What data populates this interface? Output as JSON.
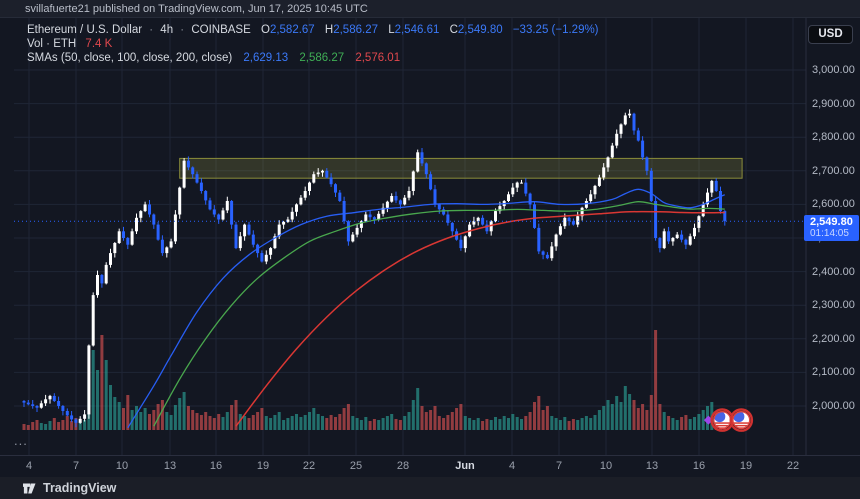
{
  "header": {
    "publish_line": "svillafuerte21 published on TradingView.com, Jun 17, 2025 10:45 UTC"
  },
  "toolbar": {
    "currency_button": "USD"
  },
  "legend": {
    "symbol_row": {
      "title": "Ethereum / U.S. Dollar",
      "separator": "·",
      "interval": "4h",
      "exchange": "COINBASE",
      "open_label": "O",
      "open": "2,582.67",
      "high_label": "H",
      "high": "2,586.27",
      "low_label": "L",
      "low": "2,546.61",
      "close_label": "C",
      "close": "2,549.80",
      "change": "−33.25 (−1.29%)"
    },
    "volume_row": {
      "label": "Vol · ETH",
      "value": "7.4 K"
    },
    "sma_row": {
      "label": "SMAs (50, close, 100, close, 200, close)",
      "sma50": "2,629.13",
      "sma100": "2,586.27",
      "sma200": "2,576.01"
    },
    "more_indicator": "..."
  },
  "price_scale": {
    "labels": [
      "3,000.00",
      "2,900.00",
      "2,800.00",
      "2,700.00",
      "2,600.00",
      "2,500.00",
      "2,400.00",
      "2,300.00",
      "2,200.00",
      "2,100.00",
      "2,000.00"
    ],
    "badge": {
      "price": "2,549.80",
      "countdown": "01:14:05"
    }
  },
  "time_scale": {
    "labels": [
      "4",
      "7",
      "10",
      "13",
      "16",
      "19",
      "22",
      "25",
      "28",
      "Jun",
      "4",
      "7",
      "10",
      "13",
      "16",
      "19",
      "22"
    ],
    "bold_label": "Jun"
  },
  "footer": {
    "brand": "TradingView"
  },
  "colors": {
    "background": "#131722",
    "chrome": "#1b1e27",
    "grid": "#1f2636",
    "candle_up": "#ffffff",
    "candle_down": "#2962ff",
    "volume_up": "#2ca69a",
    "volume_down": "#e05452",
    "sma50": "#2962ff",
    "sma100": "#4caf50",
    "sma200": "#e53935",
    "zone_fill": "rgba(168,168,70,0.22)",
    "zone_border": "#8b8d3a",
    "badge_bg": "#2962ff",
    "accent_blue": "#2962ff",
    "sticker_ring": "#d03230",
    "sticker_iris": "#4763e4",
    "handle_purple": "#9c45ea"
  },
  "chart_data": {
    "type": "candlestick",
    "title": "Ethereum / U.S. Dollar · 4h · COINBASE",
    "pair": "Ethereum / U.S. Dollar",
    "interval": "4h",
    "exchange": "COINBASE",
    "last_bar": {
      "open": 2582.67,
      "high": 2586.27,
      "low": 2546.61,
      "close": 2549.8,
      "change": -33.25,
      "change_pct": -1.29,
      "volume": "7.4 K",
      "countdown": "01:14:05"
    },
    "sma_values": {
      "sma50": 2629.13,
      "sma100": 2586.27,
      "sma200": 2576.01
    },
    "price_ticks": [
      3000,
      2900,
      2800,
      2700,
      2600,
      2500,
      2400,
      2300,
      2200,
      2100,
      2000
    ],
    "price_range_visible": [
      1920,
      3060
    ],
    "time_labels": [
      "4",
      "7",
      "10",
      "13",
      "16",
      "19",
      "22",
      "25",
      "28",
      "Jun",
      "4",
      "7",
      "10",
      "13",
      "16",
      "19",
      "22"
    ],
    "last_price": 2549.8,
    "candles": {
      "close": [
        2010,
        2005,
        2000,
        1995,
        2008,
        2020,
        2030,
        2015,
        2000,
        1985,
        1972,
        1960,
        1950,
        1962,
        1975,
        2180,
        2330,
        2390,
        2365,
        2420,
        2455,
        2485,
        2520,
        2500,
        2480,
        2520,
        2560,
        2580,
        2600,
        2570,
        2540,
        2495,
        2455,
        2472,
        2490,
        2570,
        2650,
        2730,
        2710,
        2690,
        2665,
        2640,
        2612,
        2585,
        2570,
        2555,
        2582,
        2610,
        2540,
        2470,
        2505,
        2540,
        2510,
        2480,
        2455,
        2430,
        2450,
        2470,
        2505,
        2540,
        2548,
        2555,
        2578,
        2600,
        2620,
        2640,
        2665,
        2690,
        2695,
        2700,
        2680,
        2660,
        2635,
        2610,
        2550,
        2490,
        2510,
        2530,
        2550,
        2570,
        2562,
        2555,
        2572,
        2590,
        2608,
        2625,
        2612,
        2600,
        2620,
        2640,
        2698,
        2755,
        2722,
        2690,
        2645,
        2600,
        2585,
        2570,
        2545,
        2520,
        2495,
        2470,
        2505,
        2540,
        2550,
        2560,
        2540,
        2520,
        2550,
        2580,
        2595,
        2610,
        2630,
        2650,
        2665,
        2665,
        2632,
        2600,
        2530,
        2460,
        2450,
        2440,
        2475,
        2510,
        2535,
        2560,
        2550,
        2540,
        2565,
        2590,
        2610,
        2630,
        2655,
        2680,
        2710,
        2740,
        2775,
        2810,
        2838,
        2865,
        2870,
        2820,
        2790,
        2740,
        2700,
        2610,
        2500,
        2470,
        2520,
        2490,
        2500,
        2510,
        2495,
        2480,
        2505,
        2530,
        2565,
        2600,
        2635,
        2670,
        2640,
        2580,
        2550
      ]
    },
    "volumes_k": [
      6,
      5,
      8,
      10,
      7,
      6,
      9,
      12,
      8,
      10,
      14,
      9,
      12,
      8,
      10,
      50,
      80,
      60,
      95,
      70,
      45,
      33,
      28,
      22,
      35,
      20,
      24,
      18,
      22,
      16,
      20,
      26,
      30,
      18,
      15,
      25,
      32,
      38,
      24,
      20,
      17,
      15,
      18,
      14,
      12,
      16,
      13,
      18,
      25,
      30,
      16,
      14,
      12,
      15,
      18,
      22,
      14,
      12,
      15,
      18,
      10,
      12,
      14,
      16,
      13,
      15,
      18,
      22,
      16,
      14,
      12,
      15,
      13,
      16,
      22,
      26,
      14,
      12,
      10,
      13,
      9,
      11,
      10,
      12,
      14,
      16,
      11,
      10,
      14,
      18,
      30,
      42,
      24,
      18,
      20,
      24,
      14,
      12,
      15,
      18,
      22,
      26,
      14,
      12,
      10,
      12,
      9,
      11,
      10,
      13,
      11,
      14,
      12,
      16,
      13,
      11,
      14,
      18,
      28,
      34,
      20,
      24,
      14,
      12,
      10,
      13,
      9,
      11,
      10,
      12,
      14,
      12,
      15,
      20,
      24,
      30,
      26,
      34,
      28,
      44,
      36,
      30,
      22,
      26,
      20,
      35,
      100,
      26,
      18,
      14,
      12,
      10,
      13,
      15,
      11,
      13,
      16,
      20,
      24,
      28,
      18,
      12,
      7
    ],
    "sma50_path": [
      [
        24,
        1935
      ],
      [
        30,
        2060
      ],
      [
        34,
        2150
      ],
      [
        40,
        2280
      ],
      [
        46,
        2380
      ],
      [
        52,
        2450
      ],
      [
        58,
        2500
      ],
      [
        64,
        2540
      ],
      [
        70,
        2565
      ],
      [
        76,
        2575
      ],
      [
        82,
        2585
      ],
      [
        88,
        2592
      ],
      [
        94,
        2600
      ],
      [
        100,
        2602
      ],
      [
        106,
        2600
      ],
      [
        112,
        2603
      ],
      [
        118,
        2608
      ],
      [
        124,
        2600
      ],
      [
        130,
        2602
      ],
      [
        136,
        2615
      ],
      [
        139,
        2632
      ],
      [
        142,
        2645
      ],
      [
        145,
        2632
      ],
      [
        148,
        2605
      ],
      [
        151,
        2595
      ],
      [
        154,
        2590
      ],
      [
        157,
        2600
      ],
      [
        160,
        2618
      ],
      [
        162,
        2629
      ]
    ],
    "sma100_path": [
      [
        30,
        1940
      ],
      [
        36,
        2080
      ],
      [
        42,
        2200
      ],
      [
        48,
        2300
      ],
      [
        54,
        2380
      ],
      [
        60,
        2440
      ],
      [
        66,
        2490
      ],
      [
        72,
        2520
      ],
      [
        78,
        2545
      ],
      [
        84,
        2560
      ],
      [
        90,
        2572
      ],
      [
        96,
        2580
      ],
      [
        102,
        2582
      ],
      [
        108,
        2582
      ],
      [
        114,
        2585
      ],
      [
        120,
        2582
      ],
      [
        126,
        2580
      ],
      [
        132,
        2585
      ],
      [
        138,
        2598
      ],
      [
        142,
        2608
      ],
      [
        146,
        2600
      ],
      [
        150,
        2592
      ],
      [
        154,
        2586
      ],
      [
        158,
        2588
      ],
      [
        162,
        2586
      ]
    ],
    "sma200_path": [
      [
        49,
        1940
      ],
      [
        56,
        2060
      ],
      [
        63,
        2170
      ],
      [
        70,
        2265
      ],
      [
        77,
        2345
      ],
      [
        84,
        2410
      ],
      [
        91,
        2462
      ],
      [
        98,
        2500
      ],
      [
        105,
        2528
      ],
      [
        112,
        2548
      ],
      [
        119,
        2560
      ],
      [
        126,
        2566
      ],
      [
        133,
        2572
      ],
      [
        140,
        2578
      ],
      [
        147,
        2578
      ],
      [
        152,
        2576
      ],
      [
        157,
        2575
      ],
      [
        162,
        2576
      ]
    ],
    "supply_zone": {
      "price_top": 2737,
      "price_bottom": 2678,
      "start_index": 36,
      "end_index": 166
    },
    "sticker": {
      "emoji": "eyes",
      "at_price": 1958,
      "eye1_index": 161.4,
      "eye2_index": 165.8,
      "handle_index": 158.2,
      "selected": true
    }
  }
}
